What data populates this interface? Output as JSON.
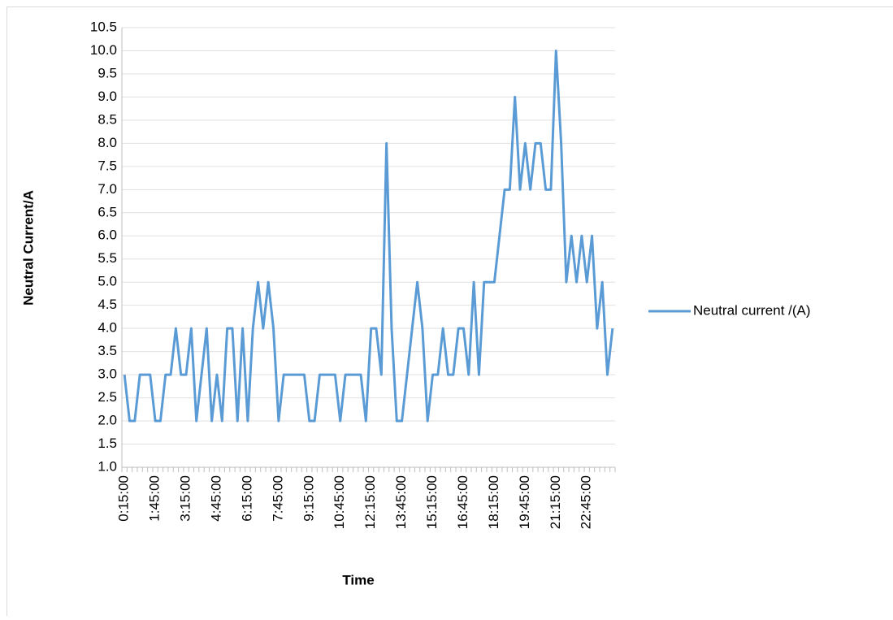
{
  "chart_data": {
    "type": "line",
    "x_label": "Time",
    "y_label": "Neutral Current/A",
    "categories": [
      "0:15:00",
      null,
      null,
      null,
      null,
      null,
      "1:45:00",
      null,
      null,
      null,
      null,
      null,
      "3:15:00",
      null,
      null,
      null,
      null,
      null,
      "4:45:00",
      null,
      null,
      null,
      null,
      null,
      "6:15:00",
      null,
      null,
      null,
      null,
      null,
      "7:45:00",
      null,
      null,
      null,
      null,
      null,
      "9:15:00",
      null,
      null,
      null,
      null,
      null,
      "10:45:00",
      null,
      null,
      null,
      null,
      null,
      "12:15:00",
      null,
      null,
      null,
      null,
      null,
      "13:45:00",
      null,
      null,
      null,
      null,
      null,
      "15:15:00",
      null,
      null,
      null,
      null,
      null,
      "16:45:00",
      null,
      null,
      null,
      null,
      null,
      "18:15:00",
      null,
      null,
      null,
      null,
      null,
      "19:45:00",
      null,
      null,
      null,
      null,
      null,
      "21:15:00",
      null,
      null,
      null,
      null,
      null,
      "22:45:00",
      null,
      null,
      null,
      null,
      null
    ],
    "series": [
      {
        "name": "Neutral current /(A)",
        "color": "#5b9bd5",
        "values": [
          3,
          2,
          2,
          3,
          3,
          3,
          2,
          2,
          3,
          3,
          4,
          3,
          3,
          4,
          2,
          3,
          4,
          2,
          3,
          2,
          4,
          4,
          2,
          4,
          2,
          4,
          5,
          4,
          5,
          4,
          2,
          3,
          3,
          3,
          3,
          3,
          2,
          2,
          3,
          3,
          3,
          3,
          2,
          3,
          3,
          3,
          3,
          2,
          4,
          4,
          3,
          8,
          4,
          2,
          2,
          3,
          4,
          5,
          4,
          2,
          3,
          3,
          4,
          3,
          3,
          4,
          4,
          3,
          5,
          3,
          5,
          5,
          5,
          6,
          7,
          7,
          9,
          7,
          8,
          7,
          8,
          8,
          7,
          7,
          10,
          8,
          5,
          6,
          5,
          6,
          5,
          6,
          4,
          5,
          3,
          4
        ]
      }
    ],
    "ylim": [
      1,
      10.5
    ],
    "yticks": [
      {
        "value": 1,
        "label": "1.0"
      },
      1.5,
      {
        "value": 2,
        "label": "2.0"
      },
      2.5,
      {
        "value": 3,
        "label": "3.0"
      },
      3.5,
      {
        "value": 4,
        "label": "4.0"
      },
      4.5,
      {
        "value": 5,
        "label": "5.0"
      },
      5.5,
      {
        "value": 6,
        "label": "6.0"
      },
      6.5,
      {
        "value": 7,
        "label": "7.0"
      },
      7.5,
      {
        "value": 8,
        "label": "8.0"
      },
      8.5,
      {
        "value": 9,
        "label": "9.0"
      },
      9.5,
      {
        "value": 10,
        "label": "10.0"
      },
      10.5
    ],
    "grid": true,
    "legend": "right"
  }
}
